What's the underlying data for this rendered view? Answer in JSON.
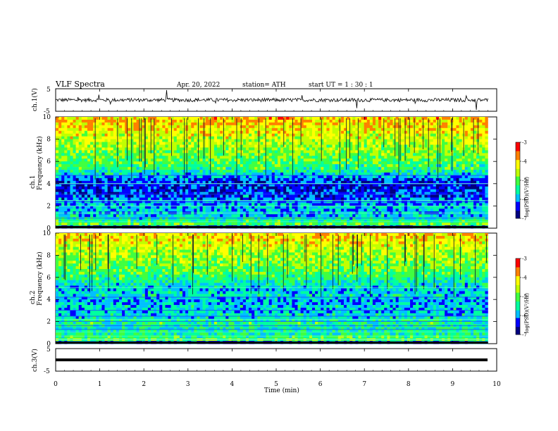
{
  "header": {
    "title": "VLF  Spectra",
    "date": "Apr. 20, 2022",
    "station": "station= ATH",
    "start_ut": "start  UT  =    1  : 30 : 1"
  },
  "chart_data": {
    "type": "heatmap",
    "x_axis": {
      "label": "Time  (min)",
      "range": [
        0,
        10
      ],
      "ticks": [
        "0",
        "1",
        "2",
        "3",
        "4",
        "5",
        "6",
        "7",
        "8",
        "9",
        "10"
      ],
      "data_extent_min": 9.8
    },
    "panels": [
      {
        "id": "ch1-waveform",
        "type": "line",
        "ylabel": "ch.1(V)",
        "ylim": [
          -5,
          5
        ],
        "yticks": [
          "5",
          "-5"
        ],
        "baseline_v": 0,
        "noise_amplitude_v": 0.8,
        "spike_amplitude_v": 4.5
      },
      {
        "id": "ch1-spectrogram",
        "type": "heatmap",
        "ylabel_line1": "ch.1",
        "ylabel_line2": "Frequency  (kHz)",
        "ylim": [
          0,
          10
        ],
        "yticks": [
          "0",
          "2",
          "4",
          "6",
          "8",
          "10"
        ],
        "rows_khz": [
          {
            "f": 10,
            "level": 0.76
          },
          {
            "f": 9.5,
            "level": 0.74
          },
          {
            "f": 9,
            "level": 0.7
          },
          {
            "f": 8.5,
            "level": 0.67
          },
          {
            "f": 8,
            "level": 0.62
          },
          {
            "f": 7.5,
            "level": 0.58
          },
          {
            "f": 7,
            "level": 0.55
          },
          {
            "f": 6.5,
            "level": 0.52
          },
          {
            "f": 6,
            "level": 0.48
          },
          {
            "f": 5.5,
            "level": 0.44
          },
          {
            "f": 5,
            "level": 0.34
          },
          {
            "f": 4.5,
            "level": 0.2
          },
          {
            "f": 4,
            "level": 0.14
          },
          {
            "f": 3.5,
            "level": 0.16
          },
          {
            "f": 3,
            "level": 0.2
          },
          {
            "f": 2.5,
            "level": 0.24
          },
          {
            "f": 2,
            "level": 0.3
          },
          {
            "f": 1.5,
            "level": 0.28
          },
          {
            "f": 1,
            "level": 0.36
          },
          {
            "f": 0.5,
            "level": 0.5
          },
          {
            "f": 0,
            "level": 0.0
          }
        ],
        "colorbar": {
          "label": "log(PSD)(V²/Hz)",
          "range": [
            -7,
            -3
          ],
          "ticks": [
            "-3",
            "-4",
            "-5",
            "-6",
            "-7"
          ]
        }
      },
      {
        "id": "ch2-spectrogram",
        "type": "heatmap",
        "ylabel_line1": "ch.2",
        "ylabel_line2": "Frequency  (kHz)",
        "ylim": [
          0,
          10
        ],
        "yticks": [
          "0",
          "2",
          "4",
          "6",
          "8",
          "10"
        ],
        "rows_khz": [
          {
            "f": 10,
            "level": 0.72
          },
          {
            "f": 9.5,
            "level": 0.7
          },
          {
            "f": 9,
            "level": 0.66
          },
          {
            "f": 8.5,
            "level": 0.62
          },
          {
            "f": 8,
            "level": 0.58
          },
          {
            "f": 7.5,
            "level": 0.55
          },
          {
            "f": 7,
            "level": 0.52
          },
          {
            "f": 6.5,
            "level": 0.48
          },
          {
            "f": 6,
            "level": 0.42
          },
          {
            "f": 5.5,
            "level": 0.36
          },
          {
            "f": 5,
            "level": 0.3
          },
          {
            "f": 4.5,
            "level": 0.34
          },
          {
            "f": 4,
            "level": 0.26
          },
          {
            "f": 3.5,
            "level": 0.32
          },
          {
            "f": 3,
            "level": 0.3
          },
          {
            "f": 2.5,
            "level": 0.34
          },
          {
            "f": 2,
            "level": 0.42
          },
          {
            "f": 1.5,
            "level": 0.36
          },
          {
            "f": 1,
            "level": 0.4
          },
          {
            "f": 0.5,
            "level": 0.5
          },
          {
            "f": 0,
            "level": 0.0
          }
        ],
        "colorbar": {
          "label": "log(PSD)(V²/Hz)",
          "range": [
            -7,
            -3
          ],
          "ticks": [
            "-3",
            "-4",
            "-5",
            "-6",
            "-7"
          ]
        }
      },
      {
        "id": "ch3-waveform",
        "type": "line",
        "ylabel": "ch.3(V)",
        "ylim": [
          -5,
          5
        ],
        "yticks": [
          "5",
          "-5"
        ],
        "baseline_v": -1.7
      }
    ],
    "colormap": [
      "#000080",
      "#0000ff",
      "#00c0ff",
      "#00ffa0",
      "#40ff40",
      "#c0ff00",
      "#ffff00",
      "#ff8000",
      "#ff0000",
      "#ffffff"
    ]
  }
}
